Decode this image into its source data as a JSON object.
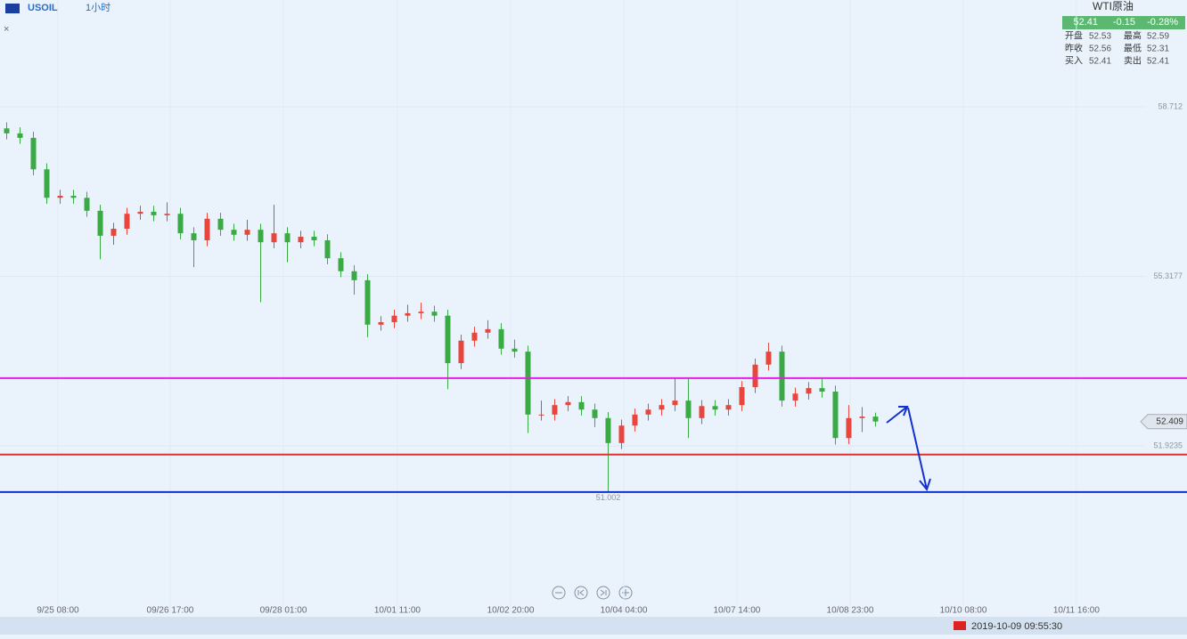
{
  "chart_data": {
    "type": "candlestick",
    "symbol": "USOIL",
    "interval": "1小时",
    "open": [
      58.28,
      58.18,
      58.09,
      57.46,
      56.89,
      56.93,
      56.89,
      56.63,
      56.13,
      56.27,
      56.57,
      56.61,
      56.54,
      56.57,
      56.18,
      56.04,
      56.47,
      56.25,
      56.15,
      56.25,
      56.0,
      56.18,
      56.0,
      56.11,
      56.04,
      55.68,
      55.42,
      55.24,
      54.35,
      54.4,
      54.53,
      54.58,
      54.61,
      54.53,
      53.58,
      54.03,
      54.19,
      54.26,
      53.87,
      53.81,
      52.55,
      52.55,
      52.74,
      52.8,
      52.65,
      52.48,
      51.98,
      52.33,
      52.55,
      52.65,
      52.74,
      52.83,
      52.48,
      52.72,
      52.65,
      52.74,
      53.1,
      53.55,
      53.81,
      52.83,
      52.97,
      53.08,
      53.01,
      52.08,
      52.48,
      52.51
    ],
    "high": [
      58.4,
      58.3,
      58.21,
      57.58,
      57.05,
      57.05,
      57.01,
      56.75,
      56.39,
      56.69,
      56.73,
      56.73,
      56.8,
      56.69,
      56.3,
      56.59,
      56.59,
      56.37,
      56.45,
      56.37,
      56.75,
      56.3,
      56.23,
      56.23,
      56.16,
      55.8,
      55.54,
      55.36,
      54.52,
      54.65,
      54.75,
      54.79,
      54.73,
      54.65,
      54.15,
      54.31,
      54.44,
      54.38,
      54.05,
      53.93,
      52.83,
      52.86,
      52.92,
      52.92,
      52.77,
      52.6,
      52.45,
      52.67,
      52.77,
      52.86,
      53.28,
      53.28,
      52.84,
      52.84,
      52.86,
      53.22,
      53.67,
      53.99,
      53.93,
      53.09,
      53.2,
      53.28,
      53.13,
      52.74,
      52.7,
      52.59
    ],
    "low": [
      58.06,
      57.97,
      57.34,
      56.77,
      56.77,
      56.77,
      56.51,
      55.66,
      55.95,
      56.15,
      56.45,
      56.42,
      56.42,
      56.06,
      55.5,
      55.92,
      56.13,
      56.03,
      56.03,
      54.8,
      55.88,
      55.6,
      55.88,
      55.92,
      55.56,
      55.3,
      54.95,
      54.1,
      54.23,
      54.28,
      54.41,
      54.46,
      54.41,
      53.06,
      53.46,
      53.91,
      54.07,
      53.75,
      53.69,
      52.18,
      52.43,
      52.43,
      52.62,
      52.53,
      52.3,
      51.002,
      51.86,
      52.21,
      52.43,
      52.53,
      52.62,
      52.08,
      52.36,
      52.53,
      52.53,
      52.62,
      52.98,
      53.43,
      52.71,
      52.71,
      52.85,
      52.89,
      51.95,
      51.96,
      52.2,
      52.31
    ],
    "close": [
      58.18,
      58.09,
      57.46,
      56.89,
      56.93,
      56.89,
      56.63,
      56.13,
      56.27,
      56.57,
      56.61,
      56.54,
      56.57,
      56.18,
      56.04,
      56.47,
      56.25,
      56.15,
      56.25,
      56.0,
      56.18,
      56.0,
      56.11,
      56.04,
      55.68,
      55.42,
      55.24,
      54.35,
      54.4,
      54.53,
      54.58,
      54.61,
      54.53,
      53.58,
      54.03,
      54.19,
      54.26,
      53.87,
      53.81,
      52.55,
      52.55,
      52.74,
      52.8,
      52.65,
      52.48,
      51.98,
      52.33,
      52.55,
      52.65,
      52.74,
      52.83,
      52.48,
      52.72,
      52.65,
      52.74,
      53.1,
      53.55,
      53.81,
      52.83,
      52.97,
      53.08,
      53.01,
      52.08,
      52.48,
      52.51,
      52.41
    ],
    "up_color": "#e8453c",
    "down_color": "#3aaa45",
    "ylim": [
      48.556,
      60.85
    ],
    "yticks": [
      58.712,
      55.3177,
      51.9235
    ],
    "xlim": [
      -0.5,
      85.17
    ],
    "xticks": [
      {
        "value": 3.83,
        "label": "9/25 08:00"
      },
      {
        "value": 12.23,
        "label": "09/26 17:00"
      },
      {
        "value": 20.7,
        "label": "09/28 01:00"
      },
      {
        "value": 29.23,
        "label": "10/01 11:00"
      },
      {
        "value": 37.7,
        "label": "10/02 20:00"
      },
      {
        "value": 46.17,
        "label": "10/04 04:00"
      },
      {
        "value": 54.63,
        "label": "10/07 14:00"
      },
      {
        "value": 63.1,
        "label": "10/08 23:00"
      },
      {
        "value": 71.57,
        "label": "10/10 08:00"
      },
      {
        "value": 80.03,
        "label": "10/11 16:00"
      }
    ],
    "grid": true,
    "hlines": [
      {
        "value": 53.28,
        "color": "#e020e0"
      },
      {
        "value": 51.75,
        "color": "#e03030"
      },
      {
        "value": 51.0,
        "color": "#1030d0"
      }
    ],
    "last_price": 52.409,
    "low_label": 51.002
  },
  "quote": {
    "name": "WTI原油",
    "price": 52.41,
    "change": -0.15,
    "change_pct": "-0.28%",
    "rows": [
      [
        "开盘",
        52.53,
        "最高",
        52.59
      ],
      [
        "昨收",
        52.56,
        "最低",
        52.31
      ],
      [
        "买入",
        52.41,
        "卖出",
        52.41
      ]
    ]
  },
  "status": {
    "datetime": "2019-10-09 09:55:30"
  }
}
